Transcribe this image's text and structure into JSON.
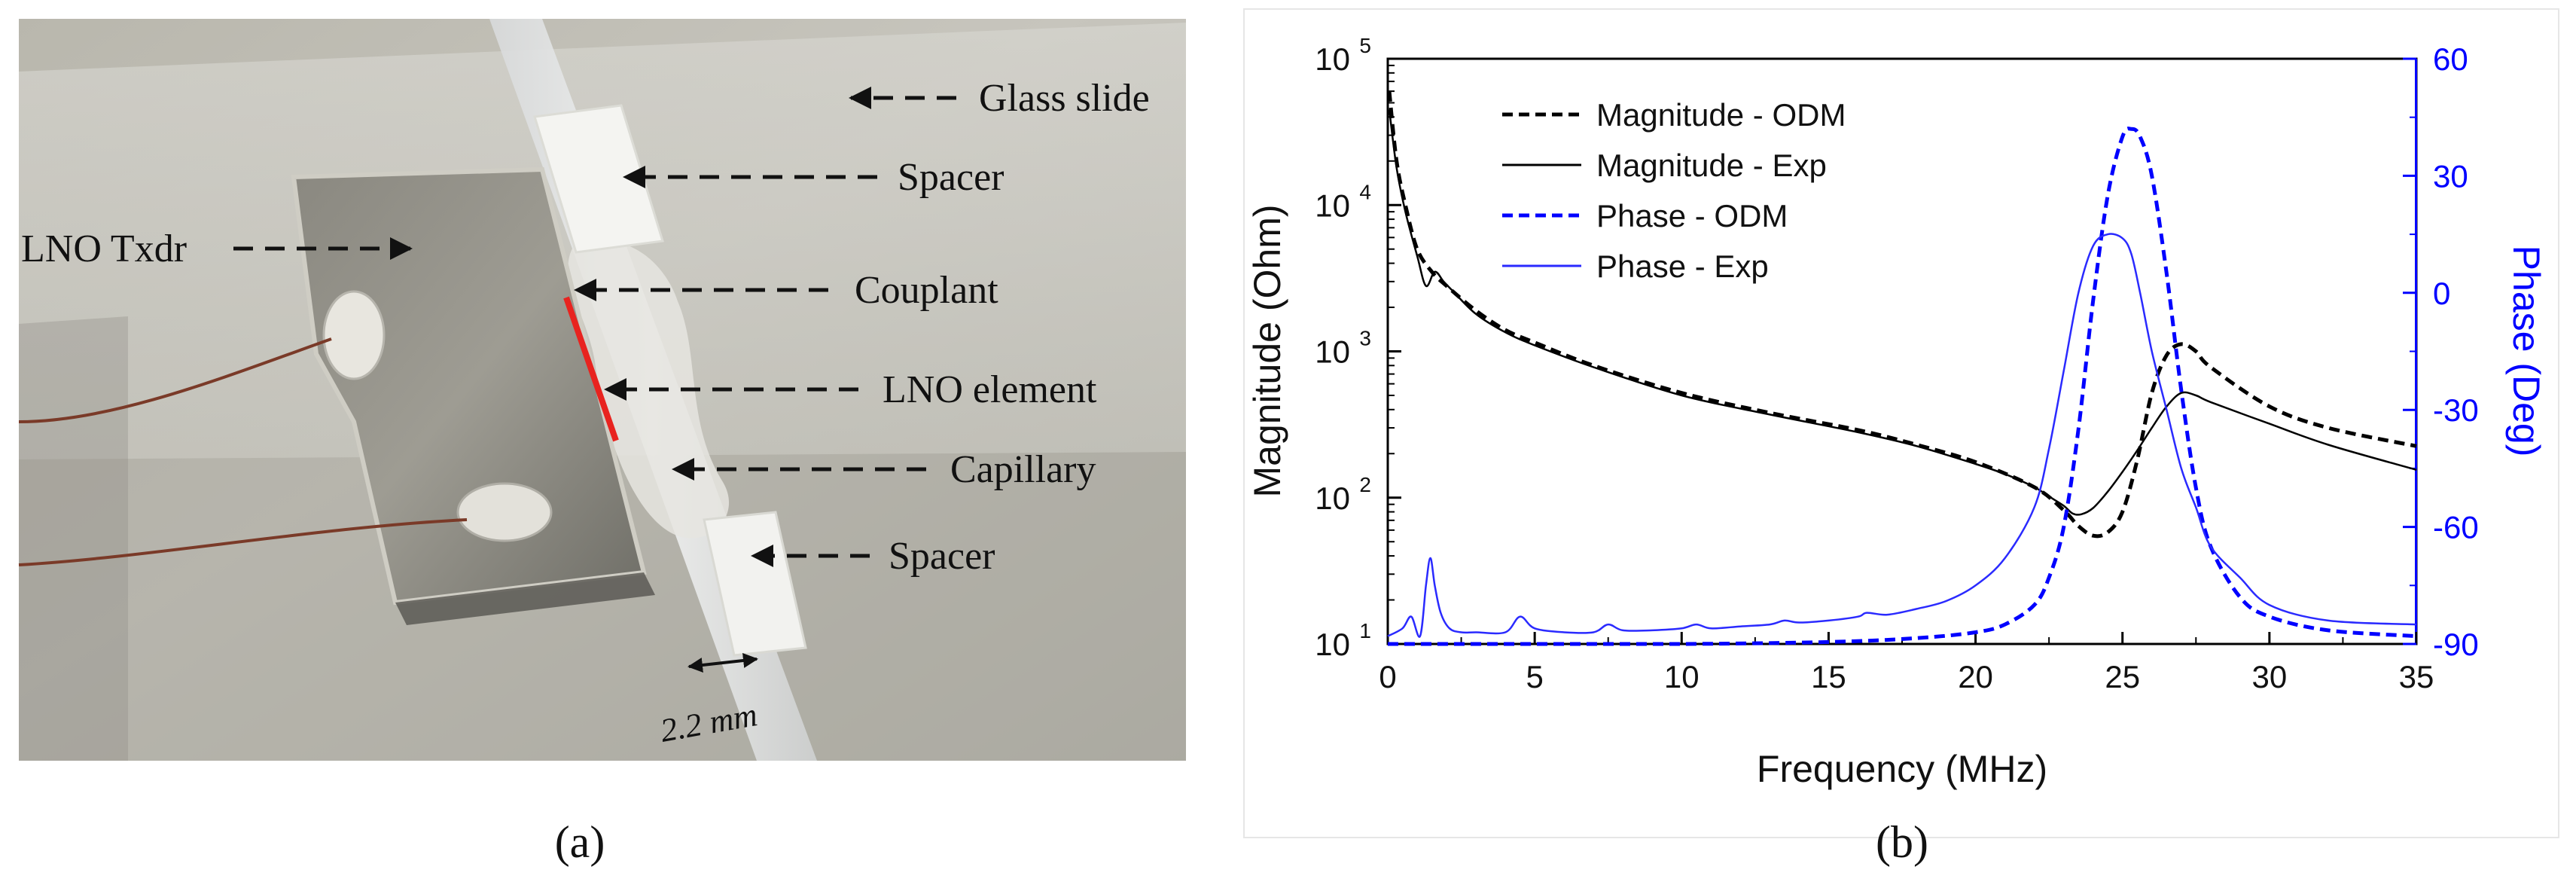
{
  "figure": {
    "panel_a": {
      "caption": "(a)",
      "photo_description_note": "",
      "annotations": [
        {
          "label": "Glass slide",
          "key": "glass-slide"
        },
        {
          "label": "Spacer",
          "key": "spacer-top"
        },
        {
          "label": "LNO Txdr",
          "key": "lno-txdr"
        },
        {
          "label": "Couplant",
          "key": "couplant"
        },
        {
          "label": "LNO element",
          "key": "lno-element"
        },
        {
          "label": "Capillary",
          "key": "capillary"
        },
        {
          "label": "Spacer",
          "key": "spacer-bottom"
        }
      ],
      "scale_bar_label": "2.2 mm",
      "colors": {
        "element_marker": "#e8231f",
        "arrow": "#111111"
      }
    },
    "panel_b": {
      "caption": "(b)"
    }
  },
  "chart_data": {
    "type": "line",
    "xlabel": "Frequency (MHz)",
    "ylabel_left": "Magnitude (Ohm)",
    "ylabel_right": "Phase (Deg)",
    "xlim": [
      0,
      35
    ],
    "xticks": [
      0,
      5,
      10,
      15,
      20,
      25,
      30,
      35
    ],
    "ylim_left_log10": [
      1,
      5
    ],
    "yticks_left": [
      {
        "base": "10",
        "exp": "1",
        "log10": 1
      },
      {
        "base": "10",
        "exp": "2",
        "log10": 2
      },
      {
        "base": "10",
        "exp": "3",
        "log10": 3
      },
      {
        "base": "10",
        "exp": "4",
        "log10": 4
      },
      {
        "base": "10",
        "exp": "5",
        "log10": 5
      }
    ],
    "ylim_right": [
      -90,
      60
    ],
    "yticks_right": [
      -90,
      -60,
      -30,
      0,
      30,
      60
    ],
    "legend": [
      {
        "name": "Magnitude - ODM",
        "color": "#000000",
        "dash": true
      },
      {
        "name": "Magnitude - Exp",
        "color": "#000000",
        "dash": false
      },
      {
        "name": "Phase - ODM",
        "color": "#0000ff",
        "dash": true
      },
      {
        "name": "Phase - Exp",
        "color": "#2a2aff",
        "dash": false
      }
    ],
    "series": [
      {
        "name": "Magnitude - ODM",
        "axis": "left",
        "scale": "log",
        "x": [
          0.05,
          0.3,
          0.6,
          1,
          1.5,
          2,
          3,
          4,
          5,
          7,
          10,
          13,
          16,
          18,
          20,
          22,
          23,
          23.5,
          24,
          24.5,
          25,
          25.5,
          26,
          26.5,
          27,
          27.5,
          28,
          30,
          32,
          35
        ],
        "values": [
          60000,
          20000,
          10000,
          5000,
          3500,
          2800,
          1900,
          1400,
          1150,
          800,
          520,
          380,
          290,
          230,
          175,
          118,
          82,
          64,
          55,
          58,
          80,
          180,
          520,
          940,
          1120,
          1000,
          780,
          420,
          300,
          225
        ]
      },
      {
        "name": "Magnitude - Exp",
        "axis": "left",
        "scale": "log",
        "x": [
          0.05,
          0.3,
          0.6,
          1,
          1.3,
          1.6,
          1.9,
          2.2,
          3,
          4,
          5,
          7,
          10,
          13,
          16,
          18,
          20,
          21,
          22,
          22.5,
          23,
          23.3,
          23.6,
          24,
          24.5,
          25,
          25.5,
          26,
          26.5,
          27,
          27.5,
          28,
          30,
          32,
          35
        ],
        "values": [
          45000,
          18000,
          9000,
          4500,
          2800,
          3500,
          3000,
          2600,
          1800,
          1350,
          1100,
          780,
          500,
          370,
          280,
          225,
          170,
          145,
          118,
          102,
          88,
          78,
          77,
          85,
          110,
          150,
          210,
          300,
          420,
          520,
          500,
          450,
          320,
          230,
          155
        ]
      },
      {
        "name": "Phase - ODM",
        "axis": "right",
        "scale": "linear",
        "x": [
          0,
          5,
          10,
          15,
          18,
          20,
          21,
          22,
          22.5,
          23,
          23.5,
          24,
          24.5,
          25,
          25.3,
          25.6,
          26,
          26.5,
          27,
          27.5,
          28,
          29,
          30,
          32,
          35
        ],
        "values": [
          -90,
          -90,
          -90,
          -89.5,
          -88.5,
          -87,
          -85,
          -80,
          -73,
          -60,
          -35,
          -2,
          25,
          40,
          42,
          40,
          30,
          5,
          -25,
          -50,
          -65,
          -78,
          -83,
          -86.5,
          -88
        ]
      },
      {
        "name": "Phase - Exp",
        "axis": "right",
        "scale": "linear",
        "x": [
          0,
          0.5,
          0.8,
          1.1,
          1.3,
          1.45,
          1.6,
          1.8,
          2.1,
          2.5,
          3,
          4,
          4.5,
          5,
          6,
          7,
          7.5,
          8,
          9,
          10,
          10.5,
          11,
          12,
          13,
          13.5,
          14,
          15,
          16,
          16.3,
          17,
          18,
          19,
          20,
          21,
          22,
          22.5,
          23,
          23.5,
          24,
          24.5,
          25,
          25.3,
          25.6,
          26,
          26.5,
          27,
          27.5,
          28,
          29,
          30,
          32,
          35
        ],
        "values": [
          -88,
          -86,
          -83,
          -88,
          -75,
          -68,
          -75,
          -82,
          -86,
          -87,
          -87,
          -87,
          -83,
          -86,
          -87,
          -87,
          -85,
          -86.5,
          -86.5,
          -86,
          -85,
          -86,
          -85.5,
          -85,
          -84,
          -84.5,
          -84,
          -83,
          -82,
          -82.5,
          -81,
          -79,
          -75,
          -68,
          -55,
          -40,
          -20,
          0,
          12,
          15,
          14,
          10,
          0,
          -15,
          -30,
          -45,
          -55,
          -65,
          -73,
          -80,
          -84,
          -85
        ]
      }
    ]
  }
}
